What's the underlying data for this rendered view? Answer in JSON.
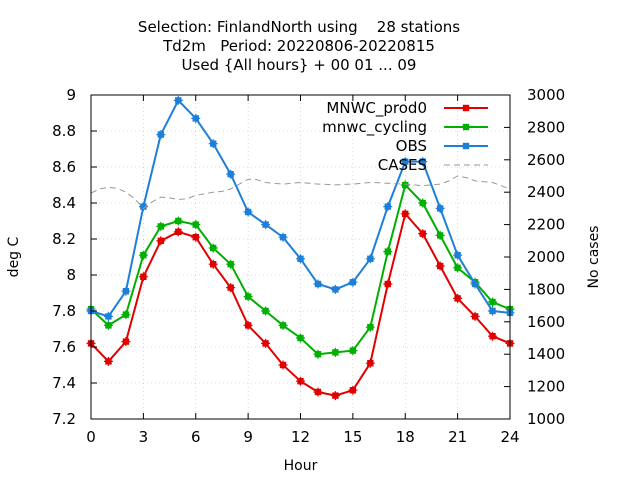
{
  "chart_data": {
    "type": "line",
    "title_lines": [
      "Selection: FinlandNorth using    28 stations",
      "Td2m   Period: 20220806-20220815",
      "Used {All hours} + 00 01 ... 09"
    ],
    "xlabel": "Hour",
    "ylabel": "deg C",
    "y2label": "No cases",
    "xlim": [
      0,
      24
    ],
    "ylim": [
      7.2,
      9.0
    ],
    "y2lim": [
      1000,
      3000
    ],
    "x_ticks": [
      0,
      3,
      6,
      9,
      12,
      15,
      18,
      21,
      24
    ],
    "y_ticks": [
      7.2,
      7.4,
      7.6,
      7.8,
      8.0,
      8.2,
      8.4,
      8.6,
      8.8,
      9.0
    ],
    "y_tick_labels": [
      "7.2",
      "7.4",
      "7.6",
      "7.8",
      "8",
      "8.2",
      "8.4",
      "8.6",
      "8.8",
      "9"
    ],
    "y2_ticks": [
      1000,
      1200,
      1400,
      1600,
      1800,
      2000,
      2200,
      2400,
      2600,
      2800,
      3000
    ],
    "legend_position": "top-right",
    "x": [
      0,
      1,
      2,
      3,
      4,
      5,
      6,
      7,
      8,
      9,
      10,
      11,
      12,
      13,
      14,
      15,
      16,
      17,
      18,
      19,
      20,
      21,
      22,
      23,
      24
    ],
    "series": [
      {
        "name": "MNWC_prod0",
        "color": "#e00000",
        "axis": "left",
        "marker": "square",
        "values": [
          7.62,
          7.52,
          7.63,
          7.99,
          8.19,
          8.24,
          8.21,
          8.06,
          7.93,
          7.72,
          7.62,
          7.5,
          7.41,
          7.35,
          7.33,
          7.36,
          7.51,
          7.95,
          8.34,
          8.23,
          8.05,
          7.87,
          7.77,
          7.66,
          7.62
        ]
      },
      {
        "name": "mnwc_cycling",
        "color": "#00b000",
        "axis": "left",
        "marker": "square",
        "values": [
          7.81,
          7.72,
          7.78,
          8.11,
          8.27,
          8.3,
          8.28,
          8.15,
          8.06,
          7.88,
          7.8,
          7.72,
          7.65,
          7.56,
          7.57,
          7.58,
          7.71,
          8.13,
          8.5,
          8.4,
          8.22,
          8.04,
          7.96,
          7.85,
          7.81
        ]
      },
      {
        "name": "OBS",
        "color": "#1e7fd8",
        "axis": "left",
        "marker": "square",
        "values": [
          7.8,
          7.77,
          7.91,
          8.38,
          8.78,
          8.97,
          8.87,
          8.73,
          8.56,
          8.35,
          8.28,
          8.21,
          8.09,
          7.95,
          7.92,
          7.96,
          8.09,
          8.38,
          8.63,
          8.63,
          8.37,
          8.11,
          7.95,
          7.8,
          7.79
        ]
      },
      {
        "name": "CASES",
        "color": "#999999",
        "axis": "right",
        "marker": "none",
        "dashed": true,
        "x": [
          0,
          0.5,
          1,
          1.5,
          2,
          2.5,
          3,
          3.5,
          4,
          4.5,
          5,
          5.5,
          6,
          6.5,
          7,
          7.5,
          8,
          8.5,
          9,
          9.5,
          10,
          10.5,
          11,
          11.5,
          12,
          12.5,
          13,
          13.5,
          14,
          14.5,
          15,
          15.5,
          16,
          16.5,
          17,
          17.5,
          18,
          18.5,
          19,
          19.5,
          20,
          20.5,
          21,
          21.5,
          22,
          22.5,
          23,
          23.5,
          24
        ],
        "values": [
          2395,
          2420,
          2430,
          2425,
          2400,
          2360,
          2300,
          2340,
          2370,
          2365,
          2355,
          2360,
          2380,
          2390,
          2400,
          2405,
          2420,
          2450,
          2480,
          2478,
          2460,
          2455,
          2450,
          2455,
          2460,
          2455,
          2450,
          2448,
          2445,
          2448,
          2450,
          2455,
          2460,
          2458,
          2455,
          2452,
          2450,
          2445,
          2440,
          2445,
          2450,
          2470,
          2500,
          2490,
          2470,
          2465,
          2460,
          2440,
          2420
        ]
      }
    ]
  }
}
